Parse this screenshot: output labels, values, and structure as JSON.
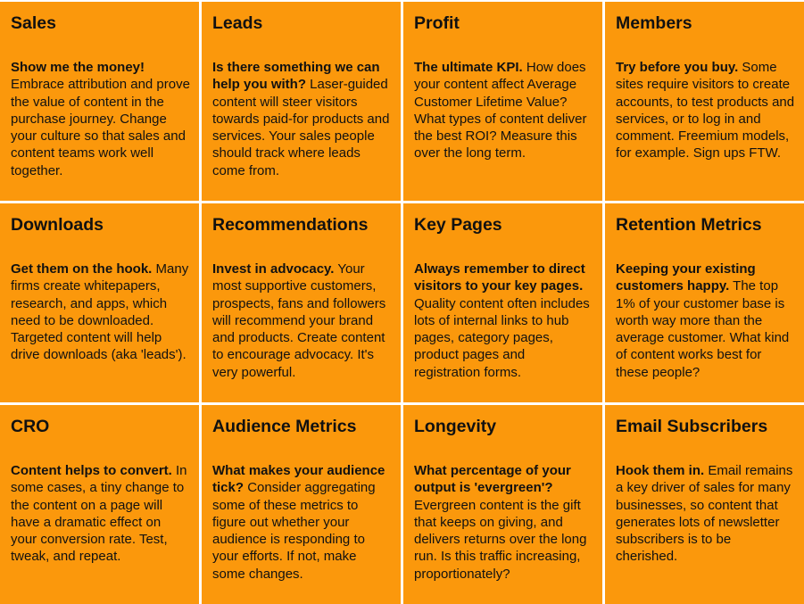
{
  "background_color": "#FB980C",
  "cards": [
    {
      "title": "Sales",
      "lead": "Show me the money!",
      "text": "Embrace attribution and prove the value of content in the purchase journey. Change your culture so that sales and content teams work well together."
    },
    {
      "title": "Leads",
      "lead": "Is there something we can help you with?",
      "text": "Laser-guided content will steer visitors towards paid-for products and services. Your sales people should track where leads come from."
    },
    {
      "title": "Profit",
      "lead": "The ultimate KPI.",
      "text": "How does your content affect Average Customer Lifetime Value? What types of content deliver the best ROI? Measure this over the long term."
    },
    {
      "title": "Members",
      "lead": "Try before you buy.",
      "text": "Some sites require visitors to create accounts, to test products and services, or to log in and comment. Freemium models, for example. Sign ups FTW."
    },
    {
      "title": "Downloads",
      "lead": "Get them on the hook.",
      "text": "Many firms create whitepapers, research, and apps, which need to be downloaded. Targeted content will help drive downloads (aka 'leads')."
    },
    {
      "title": "Recommendations",
      "lead": "Invest in advocacy.",
      "text": "Your most supportive customers, prospects, fans and followers will recommend your brand and products. Create content to encourage advocacy. It's very powerful."
    },
    {
      "title": "Key Pages",
      "lead": "Always remember to direct visitors to your key pages.",
      "text": "Quality content often includes lots of internal links to hub pages, category pages, product pages and registration forms."
    },
    {
      "title": "Retention Metrics",
      "lead": "Keeping your existing customers happy.",
      "text": "The top 1% of your customer base is worth way more than the average customer. What kind of content works best for these people?"
    },
    {
      "title": "CRO",
      "lead": "Content helps to convert.",
      "text": "In some cases, a tiny change to the content on a page will have a dramatic effect on your conversion rate. Test, tweak, and repeat."
    },
    {
      "title": "Audience Metrics",
      "lead": "What makes your audience tick?",
      "text": "Consider aggregating some of these metrics to figure out whether your audience is responding to your efforts. If not, make some changes."
    },
    {
      "title": "Longevity",
      "lead": "What percentage of your output is 'evergreen'?",
      "text": "Evergreen content is the gift that keeps on giving, and delivers returns over the long run. Is this traffic increasing, proportionately?"
    },
    {
      "title": "Email Subscribers",
      "lead": "Hook them in.",
      "text": "Email remains a key driver of sales for many businesses, so content that generates lots of newsletter subscribers is to be cherished."
    }
  ]
}
